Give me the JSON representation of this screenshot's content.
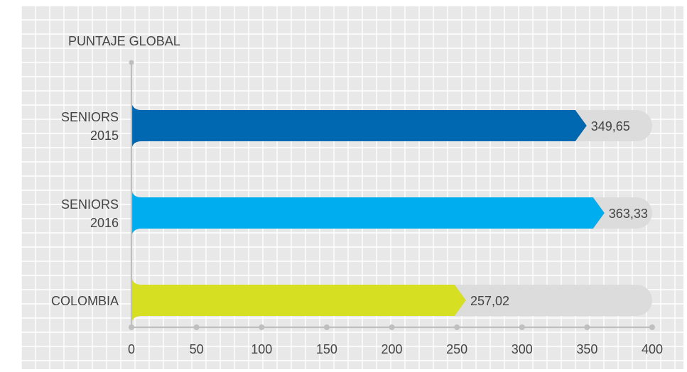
{
  "chart_data": {
    "type": "bar",
    "orientation": "horizontal",
    "title": "PUNTAJE GLOBAL",
    "categories": [
      {
        "lines": [
          "SENIORS",
          "2015"
        ]
      },
      {
        "lines": [
          "SENIORS",
          "2016"
        ]
      },
      {
        "lines": [
          "COLOMBIA"
        ]
      }
    ],
    "values": [
      349.65,
      363.33,
      257.02
    ],
    "value_labels": [
      "349,65",
      "363,33",
      "257,02"
    ],
    "colors": [
      "#0067b1",
      "#00aeef",
      "#d7df23"
    ],
    "xlim": [
      0,
      400
    ],
    "xticks": [
      0,
      50,
      100,
      150,
      200,
      250,
      300,
      350,
      400
    ],
    "grid": true
  },
  "colors": {
    "grid_background": "#e8e8e8",
    "grid_lines": "#ffffff",
    "track": "#dcdcdc",
    "axis": "#bfbfbf",
    "text": "#444444"
  }
}
